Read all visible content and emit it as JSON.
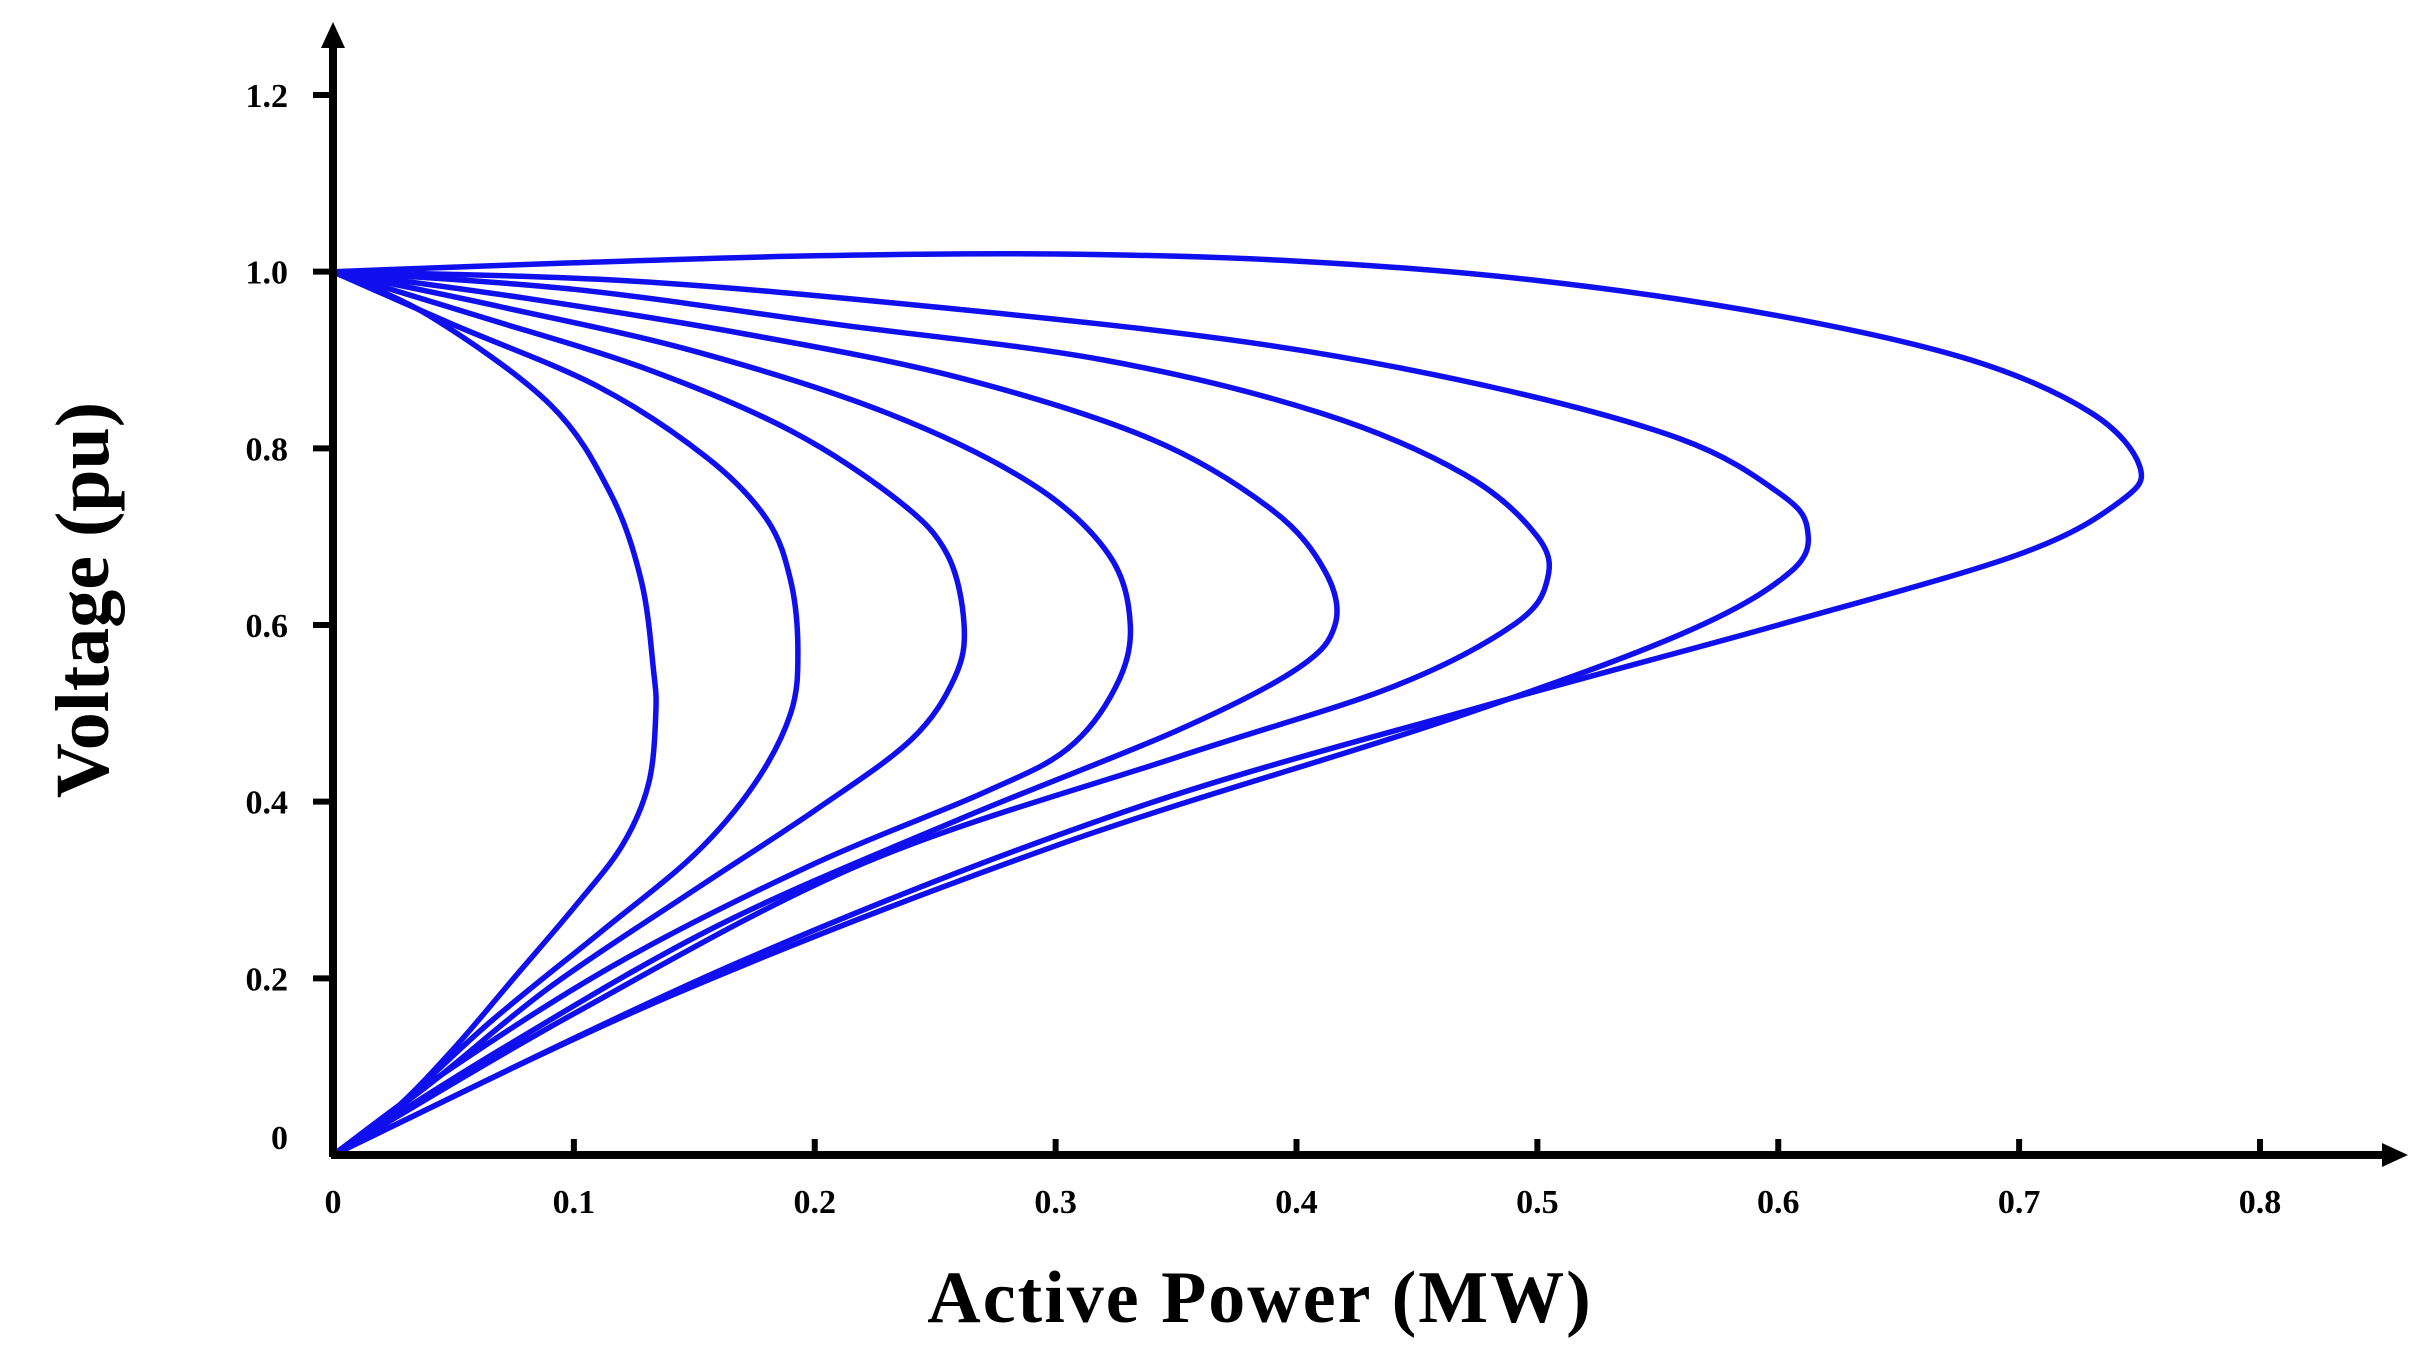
{
  "chart_data": {
    "type": "line",
    "title": "",
    "xlabel": "Active Power (MW)",
    "ylabel": "Voltage (pu)",
    "xlim": [
      0,
      0.8
    ],
    "ylim": [
      0,
      1.2
    ],
    "xticks": [
      0,
      0.1,
      0.2,
      0.3,
      0.4,
      0.5,
      0.6,
      0.7,
      0.8
    ],
    "xtick_labels": [
      "0",
      "0.1",
      "0.2",
      "0.3",
      "0.4",
      "0.5",
      "0.6",
      "0.7",
      "0.8"
    ],
    "yticks": [
      0,
      0.2,
      0.4,
      0.6,
      0.8,
      1.0,
      1.2
    ],
    "ytick_labels": [
      "0",
      "0.2",
      "0.4",
      "0.6",
      "0.8",
      "1.0",
      "1.2"
    ],
    "grid": false,
    "legend": "none",
    "line_color": "#1010ee",
    "series": [
      {
        "points": [
          [
            0,
            1.0
          ],
          [
            0.04,
            0.95
          ],
          [
            0.09,
            0.85
          ],
          [
            0.115,
            0.75
          ],
          [
            0.128,
            0.65
          ],
          [
            0.133,
            0.55
          ],
          [
            0.134,
            0.5
          ],
          [
            0.131,
            0.42
          ],
          [
            0.12,
            0.35
          ],
          [
            0.1,
            0.28
          ],
          [
            0.075,
            0.2
          ],
          [
            0.05,
            0.12
          ],
          [
            0.025,
            0.05
          ],
          [
            0,
            0
          ]
        ]
      },
      {
        "points": [
          [
            0,
            1.0
          ],
          [
            0.05,
            0.94
          ],
          [
            0.11,
            0.87
          ],
          [
            0.155,
            0.79
          ],
          [
            0.18,
            0.72
          ],
          [
            0.19,
            0.65
          ],
          [
            0.193,
            0.57
          ],
          [
            0.19,
            0.5
          ],
          [
            0.175,
            0.42
          ],
          [
            0.15,
            0.34
          ],
          [
            0.11,
            0.25
          ],
          [
            0.065,
            0.15
          ],
          [
            0.025,
            0.05
          ],
          [
            0,
            0
          ]
        ]
      },
      {
        "points": [
          [
            0,
            1.0
          ],
          [
            0.06,
            0.95
          ],
          [
            0.13,
            0.89
          ],
          [
            0.19,
            0.82
          ],
          [
            0.235,
            0.74
          ],
          [
            0.255,
            0.68
          ],
          [
            0.262,
            0.6
          ],
          [
            0.258,
            0.54
          ],
          [
            0.24,
            0.47
          ],
          [
            0.2,
            0.39
          ],
          [
            0.15,
            0.3
          ],
          [
            0.09,
            0.19
          ],
          [
            0.04,
            0.08
          ],
          [
            0,
            0
          ]
        ]
      },
      {
        "points": [
          [
            0,
            1.0
          ],
          [
            0.07,
            0.96
          ],
          [
            0.15,
            0.91
          ],
          [
            0.23,
            0.84
          ],
          [
            0.29,
            0.76
          ],
          [
            0.322,
            0.68
          ],
          [
            0.331,
            0.6
          ],
          [
            0.325,
            0.53
          ],
          [
            0.305,
            0.46
          ],
          [
            0.27,
            0.41
          ],
          [
            0.2,
            0.33
          ],
          [
            0.12,
            0.22
          ],
          [
            0.05,
            0.1
          ],
          [
            0,
            0
          ]
        ]
      },
      {
        "points": [
          [
            0,
            1.0
          ],
          [
            0.08,
            0.97
          ],
          [
            0.17,
            0.93
          ],
          [
            0.26,
            0.88
          ],
          [
            0.34,
            0.81
          ],
          [
            0.39,
            0.73
          ],
          [
            0.412,
            0.66
          ],
          [
            0.416,
            0.6
          ],
          [
            0.4,
            0.55
          ],
          [
            0.35,
            0.48
          ],
          [
            0.26,
            0.38
          ],
          [
            0.16,
            0.26
          ],
          [
            0.07,
            0.12
          ],
          [
            0,
            0
          ]
        ]
      },
      {
        "points": [
          [
            0,
            1.0
          ],
          [
            0.1,
            0.98
          ],
          [
            0.21,
            0.94
          ],
          [
            0.32,
            0.9
          ],
          [
            0.41,
            0.84
          ],
          [
            0.47,
            0.77
          ],
          [
            0.5,
            0.7
          ],
          [
            0.504,
            0.65
          ],
          [
            0.49,
            0.6
          ],
          [
            0.44,
            0.53
          ],
          [
            0.35,
            0.45
          ],
          [
            0.22,
            0.33
          ],
          [
            0.1,
            0.16
          ],
          [
            0,
            0
          ]
        ]
      },
      {
        "points": [
          [
            0,
            1.0
          ],
          [
            0.12,
            0.99
          ],
          [
            0.25,
            0.96
          ],
          [
            0.38,
            0.92
          ],
          [
            0.48,
            0.87
          ],
          [
            0.56,
            0.81
          ],
          [
            0.6,
            0.75
          ],
          [
            0.612,
            0.71
          ],
          [
            0.605,
            0.66
          ],
          [
            0.56,
            0.59
          ],
          [
            0.46,
            0.49
          ],
          [
            0.3,
            0.35
          ],
          [
            0.14,
            0.18
          ],
          [
            0,
            0
          ]
        ]
      },
      {
        "points": [
          [
            0,
            1.0
          ],
          [
            0.1,
            1.01
          ],
          [
            0.2,
            1.018
          ],
          [
            0.3,
            1.02
          ],
          [
            0.4,
            1.012
          ],
          [
            0.5,
            0.99
          ],
          [
            0.6,
            0.95
          ],
          [
            0.68,
            0.9
          ],
          [
            0.73,
            0.84
          ],
          [
            0.75,
            0.78
          ],
          [
            0.742,
            0.74
          ],
          [
            0.7,
            0.68
          ],
          [
            0.6,
            0.6
          ],
          [
            0.48,
            0.51
          ],
          [
            0.33,
            0.39
          ],
          [
            0.17,
            0.22
          ],
          [
            0,
            0
          ]
        ]
      }
    ]
  }
}
